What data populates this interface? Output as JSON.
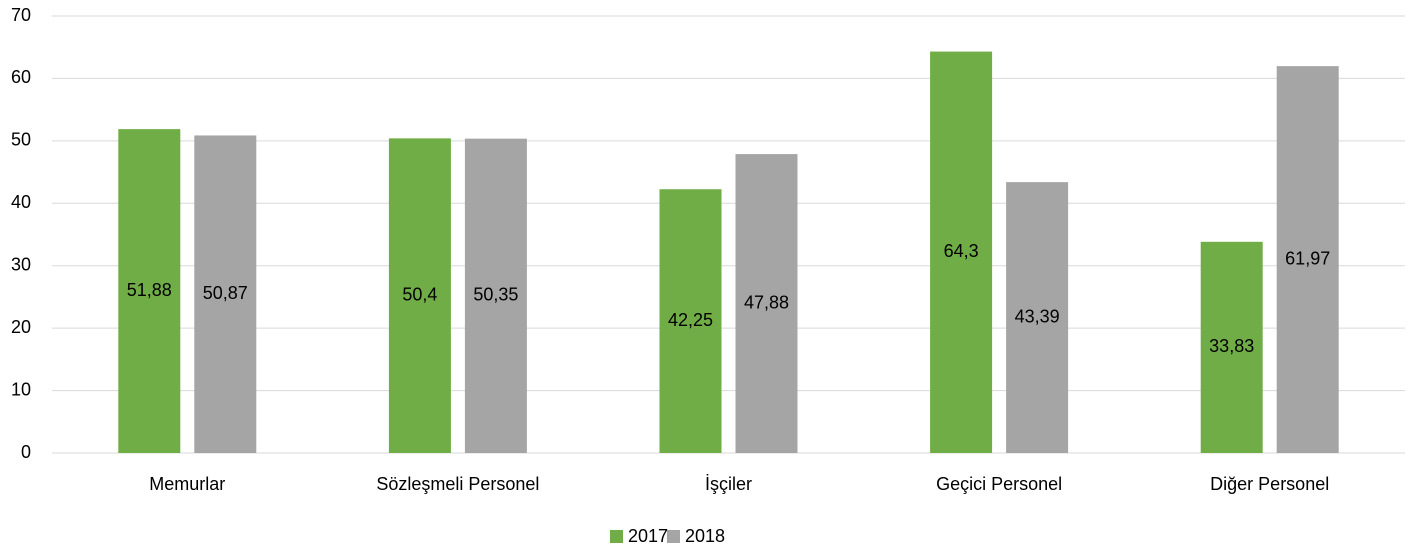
{
  "chart_data": {
    "type": "bar",
    "categories": [
      "Memurlar",
      "Sözleşmeli Personel",
      "İşçiler",
      "Geçici Personel",
      "Diğer Personel"
    ],
    "series": [
      {
        "name": "2017",
        "color": "#70ad47",
        "values": [
          51.88,
          50.4,
          42.25,
          64.3,
          33.83
        ],
        "value_labels": [
          "51,88",
          "50,4",
          "42,25",
          "64,3",
          "33,83"
        ]
      },
      {
        "name": "2018",
        "color": "#a5a5a5",
        "values": [
          50.87,
          50.35,
          47.88,
          43.39,
          61.97
        ],
        "value_labels": [
          "50,87",
          "50,35",
          "47,88",
          "43,39",
          "61,97"
        ]
      }
    ],
    "ylim": [
      0,
      70
    ],
    "yticks": [
      0,
      10,
      20,
      30,
      40,
      50,
      60,
      70
    ],
    "grid": true,
    "legend": "bottom"
  }
}
